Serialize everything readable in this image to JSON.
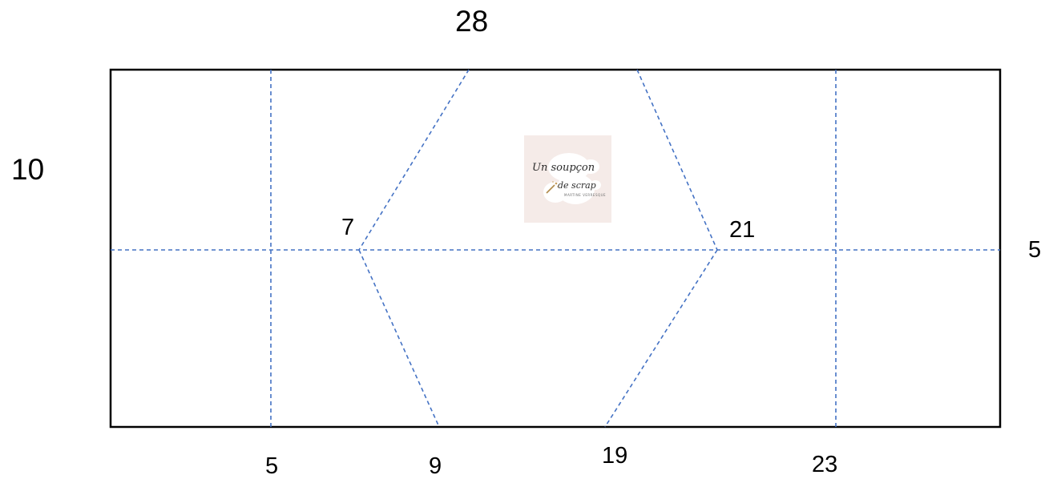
{
  "diagram": {
    "width_label": "28",
    "height_label": "10",
    "right_label": "5",
    "left_apex_label": "7",
    "right_apex_label": "21",
    "bottom_labels": [
      "5",
      "9",
      "19",
      "23"
    ],
    "line_color": "#4472c4",
    "outline_color": "#000000"
  },
  "logo": {
    "line1": "Un soupçon",
    "line2": "de scrap",
    "line3": "MARTINE VERRESQUE",
    "background": "#f5ebe8",
    "wand_icon": "magic-wand-icon"
  }
}
